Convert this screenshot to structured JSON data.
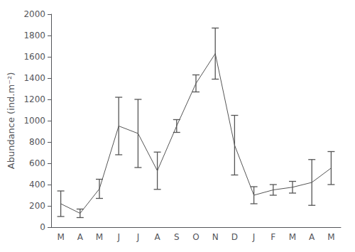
{
  "chart_data": {
    "type": "line",
    "categories": [
      "M",
      "A",
      "M",
      "J",
      "J",
      "A",
      "S",
      "O",
      "N",
      "D",
      "J",
      "F",
      "M",
      "A",
      "M"
    ],
    "values": [
      220,
      130,
      360,
      950,
      880,
      530,
      950,
      1350,
      1630,
      770,
      300,
      350,
      375,
      420,
      555
    ],
    "errors": [
      120,
      40,
      90,
      270,
      320,
      175,
      60,
      80,
      240,
      280,
      80,
      50,
      55,
      215,
      155
    ],
    "ylabel": "Abundance (ind.m⁻²)",
    "ylim": [
      0,
      2000
    ],
    "yticks": [
      0,
      200,
      400,
      600,
      800,
      1000,
      1200,
      1400,
      1600,
      1800,
      2000
    ],
    "color": "#555555",
    "marker": "none",
    "grid": false
  }
}
